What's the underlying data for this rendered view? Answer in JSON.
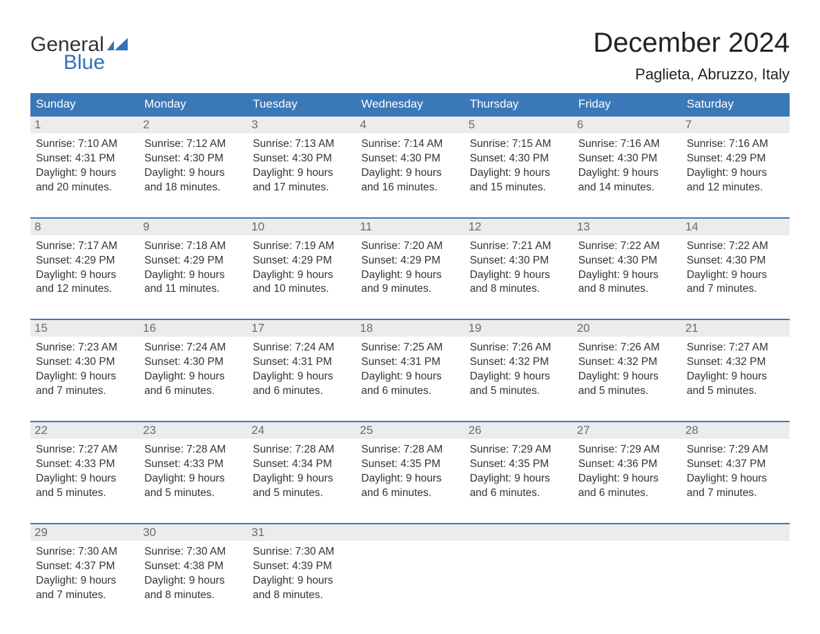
{
  "logo": {
    "text1": "General",
    "text2": "Blue"
  },
  "title": "December 2024",
  "location": "Paglieta, Abruzzo, Italy",
  "colors": {
    "header_bg": "#3b78b8",
    "header_text": "#ffffff",
    "daynum_bg": "#ececec",
    "daynum_text": "#6b6b6b",
    "body_text": "#333333",
    "week_border": "#3b78b8",
    "logo_blue": "#2f72b9"
  },
  "day_headers": [
    "Sunday",
    "Monday",
    "Tuesday",
    "Wednesday",
    "Thursday",
    "Friday",
    "Saturday"
  ],
  "weeks": [
    [
      {
        "num": "1",
        "sunrise": "Sunrise: 7:10 AM",
        "sunset": "Sunset: 4:31 PM",
        "daylight1": "Daylight: 9 hours",
        "daylight2": "and 20 minutes."
      },
      {
        "num": "2",
        "sunrise": "Sunrise: 7:12 AM",
        "sunset": "Sunset: 4:30 PM",
        "daylight1": "Daylight: 9 hours",
        "daylight2": "and 18 minutes."
      },
      {
        "num": "3",
        "sunrise": "Sunrise: 7:13 AM",
        "sunset": "Sunset: 4:30 PM",
        "daylight1": "Daylight: 9 hours",
        "daylight2": "and 17 minutes."
      },
      {
        "num": "4",
        "sunrise": "Sunrise: 7:14 AM",
        "sunset": "Sunset: 4:30 PM",
        "daylight1": "Daylight: 9 hours",
        "daylight2": "and 16 minutes."
      },
      {
        "num": "5",
        "sunrise": "Sunrise: 7:15 AM",
        "sunset": "Sunset: 4:30 PM",
        "daylight1": "Daylight: 9 hours",
        "daylight2": "and 15 minutes."
      },
      {
        "num": "6",
        "sunrise": "Sunrise: 7:16 AM",
        "sunset": "Sunset: 4:30 PM",
        "daylight1": "Daylight: 9 hours",
        "daylight2": "and 14 minutes."
      },
      {
        "num": "7",
        "sunrise": "Sunrise: 7:16 AM",
        "sunset": "Sunset: 4:29 PM",
        "daylight1": "Daylight: 9 hours",
        "daylight2": "and 12 minutes."
      }
    ],
    [
      {
        "num": "8",
        "sunrise": "Sunrise: 7:17 AM",
        "sunset": "Sunset: 4:29 PM",
        "daylight1": "Daylight: 9 hours",
        "daylight2": "and 12 minutes."
      },
      {
        "num": "9",
        "sunrise": "Sunrise: 7:18 AM",
        "sunset": "Sunset: 4:29 PM",
        "daylight1": "Daylight: 9 hours",
        "daylight2": "and 11 minutes."
      },
      {
        "num": "10",
        "sunrise": "Sunrise: 7:19 AM",
        "sunset": "Sunset: 4:29 PM",
        "daylight1": "Daylight: 9 hours",
        "daylight2": "and 10 minutes."
      },
      {
        "num": "11",
        "sunrise": "Sunrise: 7:20 AM",
        "sunset": "Sunset: 4:29 PM",
        "daylight1": "Daylight: 9 hours",
        "daylight2": "and 9 minutes."
      },
      {
        "num": "12",
        "sunrise": "Sunrise: 7:21 AM",
        "sunset": "Sunset: 4:30 PM",
        "daylight1": "Daylight: 9 hours",
        "daylight2": "and 8 minutes."
      },
      {
        "num": "13",
        "sunrise": "Sunrise: 7:22 AM",
        "sunset": "Sunset: 4:30 PM",
        "daylight1": "Daylight: 9 hours",
        "daylight2": "and 8 minutes."
      },
      {
        "num": "14",
        "sunrise": "Sunrise: 7:22 AM",
        "sunset": "Sunset: 4:30 PM",
        "daylight1": "Daylight: 9 hours",
        "daylight2": "and 7 minutes."
      }
    ],
    [
      {
        "num": "15",
        "sunrise": "Sunrise: 7:23 AM",
        "sunset": "Sunset: 4:30 PM",
        "daylight1": "Daylight: 9 hours",
        "daylight2": "and 7 minutes."
      },
      {
        "num": "16",
        "sunrise": "Sunrise: 7:24 AM",
        "sunset": "Sunset: 4:30 PM",
        "daylight1": "Daylight: 9 hours",
        "daylight2": "and 6 minutes."
      },
      {
        "num": "17",
        "sunrise": "Sunrise: 7:24 AM",
        "sunset": "Sunset: 4:31 PM",
        "daylight1": "Daylight: 9 hours",
        "daylight2": "and 6 minutes."
      },
      {
        "num": "18",
        "sunrise": "Sunrise: 7:25 AM",
        "sunset": "Sunset: 4:31 PM",
        "daylight1": "Daylight: 9 hours",
        "daylight2": "and 6 minutes."
      },
      {
        "num": "19",
        "sunrise": "Sunrise: 7:26 AM",
        "sunset": "Sunset: 4:32 PM",
        "daylight1": "Daylight: 9 hours",
        "daylight2": "and 5 minutes."
      },
      {
        "num": "20",
        "sunrise": "Sunrise: 7:26 AM",
        "sunset": "Sunset: 4:32 PM",
        "daylight1": "Daylight: 9 hours",
        "daylight2": "and 5 minutes."
      },
      {
        "num": "21",
        "sunrise": "Sunrise: 7:27 AM",
        "sunset": "Sunset: 4:32 PM",
        "daylight1": "Daylight: 9 hours",
        "daylight2": "and 5 minutes."
      }
    ],
    [
      {
        "num": "22",
        "sunrise": "Sunrise: 7:27 AM",
        "sunset": "Sunset: 4:33 PM",
        "daylight1": "Daylight: 9 hours",
        "daylight2": "and 5 minutes."
      },
      {
        "num": "23",
        "sunrise": "Sunrise: 7:28 AM",
        "sunset": "Sunset: 4:33 PM",
        "daylight1": "Daylight: 9 hours",
        "daylight2": "and 5 minutes."
      },
      {
        "num": "24",
        "sunrise": "Sunrise: 7:28 AM",
        "sunset": "Sunset: 4:34 PM",
        "daylight1": "Daylight: 9 hours",
        "daylight2": "and 5 minutes."
      },
      {
        "num": "25",
        "sunrise": "Sunrise: 7:28 AM",
        "sunset": "Sunset: 4:35 PM",
        "daylight1": "Daylight: 9 hours",
        "daylight2": "and 6 minutes."
      },
      {
        "num": "26",
        "sunrise": "Sunrise: 7:29 AM",
        "sunset": "Sunset: 4:35 PM",
        "daylight1": "Daylight: 9 hours",
        "daylight2": "and 6 minutes."
      },
      {
        "num": "27",
        "sunrise": "Sunrise: 7:29 AM",
        "sunset": "Sunset: 4:36 PM",
        "daylight1": "Daylight: 9 hours",
        "daylight2": "and 6 minutes."
      },
      {
        "num": "28",
        "sunrise": "Sunrise: 7:29 AM",
        "sunset": "Sunset: 4:37 PM",
        "daylight1": "Daylight: 9 hours",
        "daylight2": "and 7 minutes."
      }
    ],
    [
      {
        "num": "29",
        "sunrise": "Sunrise: 7:30 AM",
        "sunset": "Sunset: 4:37 PM",
        "daylight1": "Daylight: 9 hours",
        "daylight2": "and 7 minutes."
      },
      {
        "num": "30",
        "sunrise": "Sunrise: 7:30 AM",
        "sunset": "Sunset: 4:38 PM",
        "daylight1": "Daylight: 9 hours",
        "daylight2": "and 8 minutes."
      },
      {
        "num": "31",
        "sunrise": "Sunrise: 7:30 AM",
        "sunset": "Sunset: 4:39 PM",
        "daylight1": "Daylight: 9 hours",
        "daylight2": "and 8 minutes."
      },
      null,
      null,
      null,
      null
    ]
  ]
}
